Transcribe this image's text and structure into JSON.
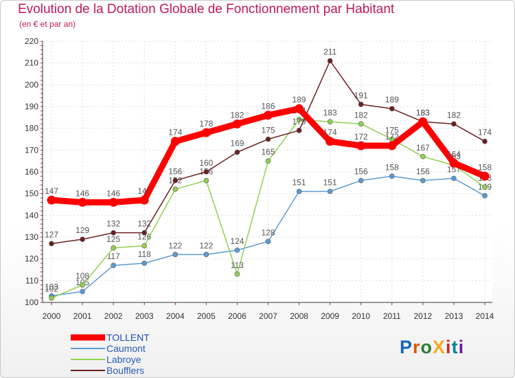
{
  "chart_data": {
    "type": "line",
    "title": "Evolution de la Dotation Globale de Fonctionnement par Habitant",
    "subtitle": "(en € et par an)",
    "categories": [
      "2000",
      "2001",
      "2002",
      "2003",
      "2004",
      "2005",
      "2006",
      "2007",
      "2008",
      "2009",
      "2010",
      "2011",
      "2012",
      "2013",
      "2014"
    ],
    "ylim": [
      100,
      220
    ],
    "yticks": [
      100,
      110,
      120,
      130,
      140,
      150,
      160,
      170,
      180,
      190,
      200,
      210,
      220
    ],
    "series": [
      {
        "name": "TOLLENT",
        "color": "#ff0000",
        "values": [
          147,
          146,
          146,
          147,
          174,
          178,
          182,
          186,
          189,
          174,
          172,
          172,
          183,
          164,
          158
        ]
      },
      {
        "name": "Caumont",
        "color": "#5b9bd5",
        "values": [
          103,
          105,
          117,
          118,
          122,
          122,
          124,
          128,
          151,
          151,
          156,
          158,
          156,
          157,
          149
        ]
      },
      {
        "name": "Labroye",
        "color": "#8fd14f",
        "values": [
          102,
          108,
          125,
          126,
          152,
          156,
          113,
          165,
          184,
          183,
          182,
          175,
          167,
          163,
          153
        ]
      },
      {
        "name": "Boufflers",
        "color": "#6b1f1f",
        "values": [
          127,
          129,
          132,
          132,
          156,
          160,
          169,
          175,
          179,
          211,
          191,
          189,
          183,
          182,
          174
        ]
      }
    ]
  },
  "logo": {
    "text": "ProXiti",
    "colors": [
      "#1565c0",
      "#e65100",
      "#2e7d32",
      "#f9a825",
      "#c62828",
      "#00838f",
      "#6a1b9a"
    ]
  }
}
